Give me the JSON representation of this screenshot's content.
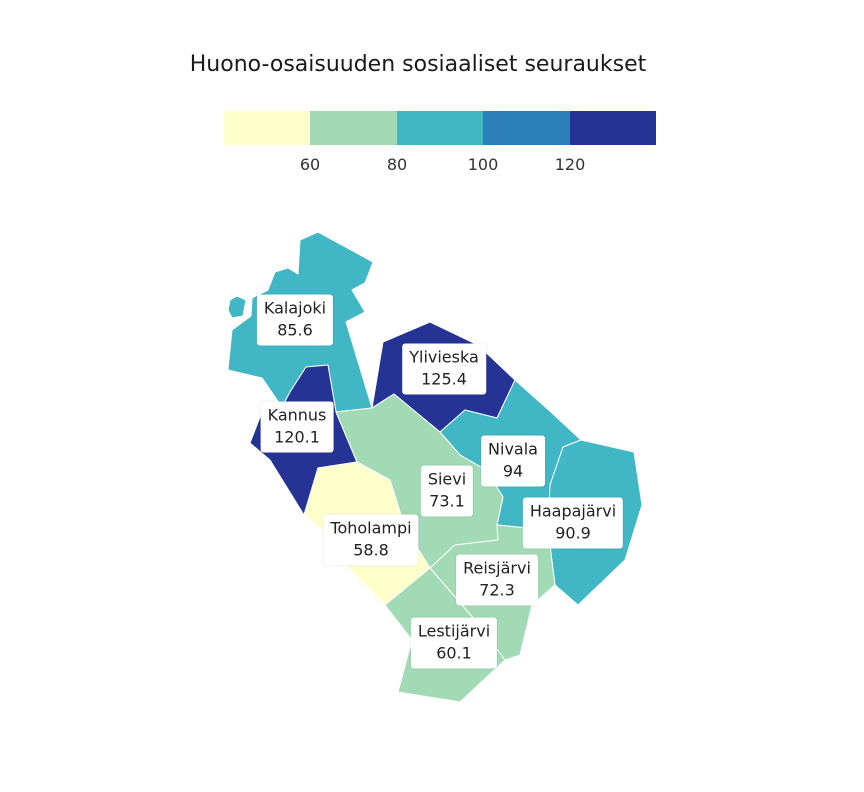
{
  "title": "Huono-osaisuuden sosiaaliset seuraukset",
  "legend": {
    "colors": [
      "#ffffcc",
      "#a1dab4",
      "#41b6c4",
      "#2c7fb8",
      "#253494"
    ],
    "ticks": [
      "60",
      "80",
      "100",
      "120"
    ]
  },
  "regions": [
    {
      "name": "Kalajoki",
      "value": "85.6"
    },
    {
      "name": "Ylivieska",
      "value": "125.4"
    },
    {
      "name": "Kannus",
      "value": "120.1"
    },
    {
      "name": "Nivala",
      "value": "94"
    },
    {
      "name": "Sievi",
      "value": "73.1"
    },
    {
      "name": "Haapajärvi",
      "value": "90.9"
    },
    {
      "name": "Toholampi",
      "value": "58.8"
    },
    {
      "name": "Reisjärvi",
      "value": "72.3"
    },
    {
      "name": "Lestijärvi",
      "value": "60.1"
    }
  ]
}
